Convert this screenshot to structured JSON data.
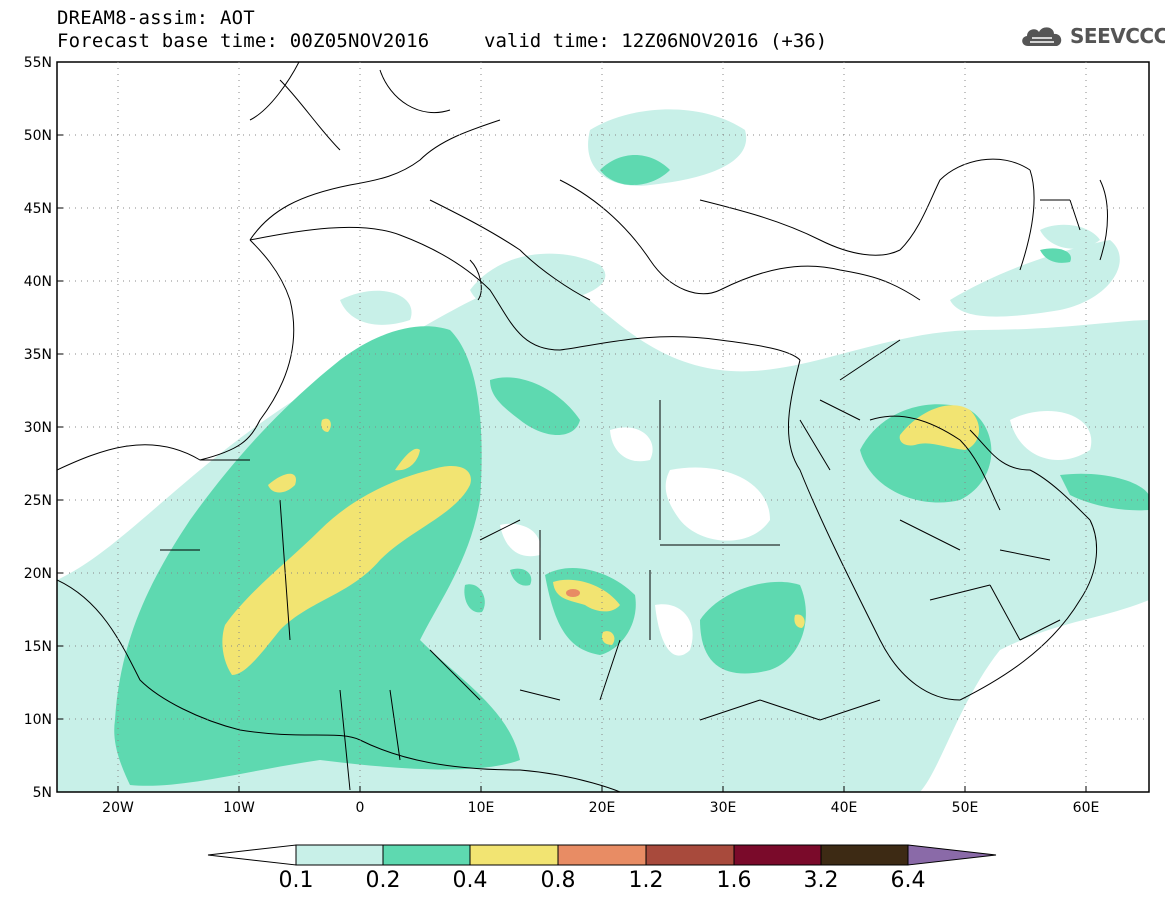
{
  "header": {
    "title_line1": "DREAM8-assim: AOT",
    "title_line2": "Forecast base time: 00Z05NOV2016",
    "valid_time": "valid time: 12Z06NOV2016 (+36)",
    "logo_text": "SEEVCCC"
  },
  "axes": {
    "lat_labels": [
      "55N",
      "50N",
      "45N",
      "40N",
      "35N",
      "30N",
      "25N",
      "20N",
      "15N",
      "10N",
      "5N"
    ],
    "lon_labels": [
      "20W",
      "10W",
      "0",
      "10E",
      "20E",
      "30E",
      "40E",
      "50E",
      "60E"
    ]
  },
  "colorbar": {
    "levels": [
      "0.1",
      "0.2",
      "0.4",
      "0.8",
      "1.2",
      "1.6",
      "3.2",
      "6.4"
    ],
    "colors": [
      "#ffffff",
      "#c8f0e8",
      "#5ed9b0",
      "#f2e472",
      "#e88c64",
      "#a84a3c",
      "#7a0a2a",
      "#3d2a14",
      "#8a6aa8"
    ]
  },
  "field": {
    "name": "AOT",
    "classes": {
      "c1": "#c8f0e8",
      "c2": "#5ed9b0",
      "c3": "#f2e472",
      "c4": "#e88c64"
    }
  }
}
